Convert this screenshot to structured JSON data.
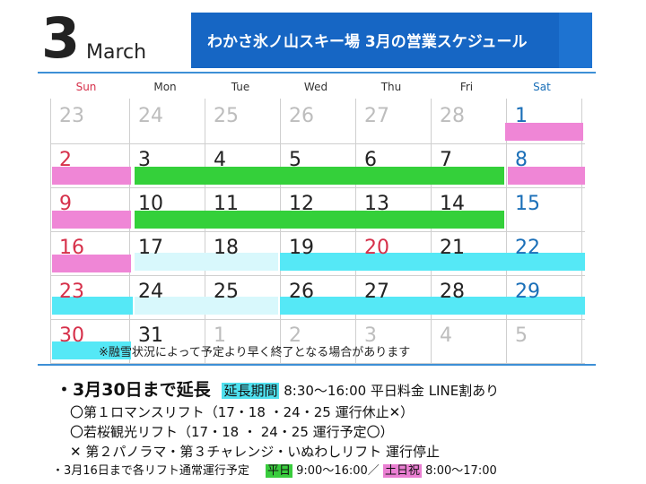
{
  "header": {
    "month_number": "3",
    "month_name": "March",
    "banner_title": "わかさ氷ノ山スキー場 3月の営業スケジュール"
  },
  "weekdays": [
    "Sun",
    "Mon",
    "Tue",
    "Wed",
    "Thu",
    "Fri",
    "Sat"
  ],
  "calendar": {
    "weeks": [
      [
        "23",
        "24",
        "25",
        "26",
        "27",
        "28",
        "1"
      ],
      [
        "2",
        "3",
        "4",
        "5",
        "6",
        "7",
        "8"
      ],
      [
        "9",
        "10",
        "11",
        "12",
        "13",
        "14",
        "15"
      ],
      [
        "16",
        "17",
        "18",
        "19",
        "20",
        "21",
        "22"
      ],
      [
        "23",
        "24",
        "25",
        "26",
        "27",
        "28",
        "29"
      ],
      [
        "30",
        "31",
        "1",
        "2",
        "3",
        "4",
        "5"
      ]
    ]
  },
  "snow_note": "※融雪状況によって予定より早く終了となる場合があります",
  "info": {
    "extension_title": "・3月30日まで延長",
    "extension_badge": "延長期間",
    "extension_detail": "8:30～16:00 平日料金 LINE割あり",
    "line1": "〇第１ロマンスリフト（17・18 ・24・25 運行休止✕）",
    "line2": "〇若桜観光リフト（17・18 ・ 24・25 運行予定〇）",
    "line3": "✕ 第２パノラマ・第３チャレンジ・いぬわしリフト 運行停止",
    "bottom_note": "・3月16日まで各リフト通常運行予定",
    "weekday_badge": "平日",
    "weekday_hours": "9:00～16:00／",
    "weekend_badge": "土日祝",
    "weekend_hours": "8:00～17:00"
  },
  "colors": {
    "banner": "#1666c4",
    "sunday": "#d6304a",
    "saturday": "#1a6fb8",
    "weekday": "#222222",
    "faded": "#bdbdbd",
    "green_bar": "#34d03a",
    "pink_bar": "#ef86d6",
    "cyan_bar": "#55e8f6",
    "light_cyan_bar": "#d8f8fc"
  }
}
